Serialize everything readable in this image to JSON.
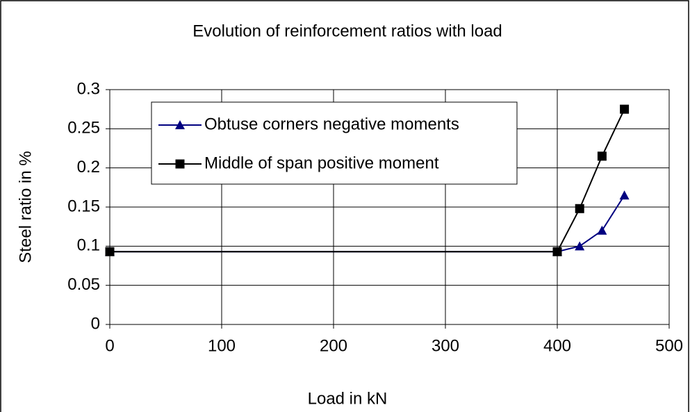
{
  "chart_data": {
    "type": "line",
    "title": "Evolution of reinforcement ratios with load",
    "xlabel": "Load in kN",
    "ylabel": "Steel ratio in %",
    "x": [
      0,
      400,
      420,
      440,
      460
    ],
    "series": [
      {
        "name": "Obtuse corners negative moments",
        "color": "#000080",
        "marker": "triangle",
        "values": [
          0.093,
          0.093,
          0.1,
          0.12,
          0.165
        ]
      },
      {
        "name": "Middle of span positive moment",
        "color": "#000000",
        "marker": "square",
        "values": [
          0.093,
          0.093,
          0.148,
          0.215,
          0.275
        ]
      }
    ],
    "xlim": [
      0,
      500
    ],
    "xticks": [
      0,
      100,
      200,
      300,
      400,
      500
    ],
    "ylim": [
      0,
      0.3
    ],
    "yticks": [
      0,
      0.05,
      0.1,
      0.15,
      0.2,
      0.25,
      0.3
    ],
    "grid": true,
    "legend": "upper left"
  }
}
